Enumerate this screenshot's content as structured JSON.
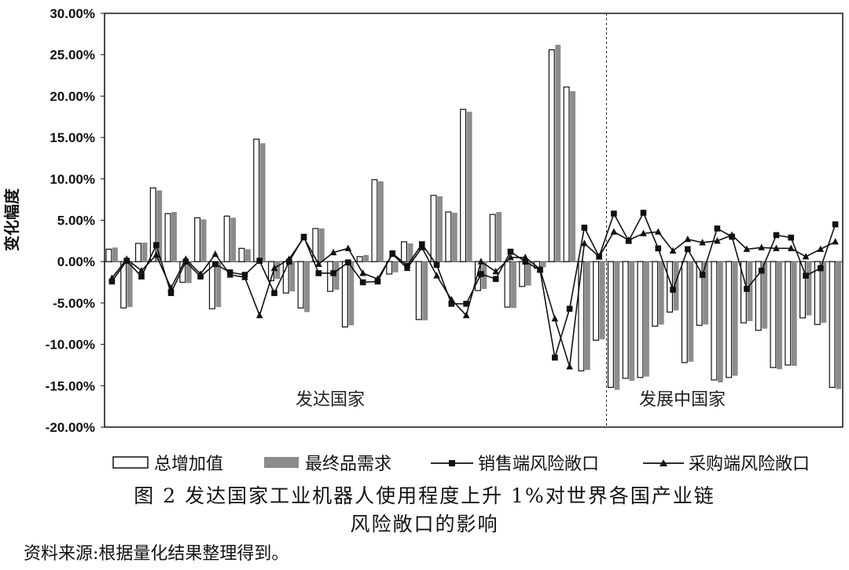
{
  "chart_data": {
    "type": "bar",
    "ylabel": "变化幅度",
    "ylim": [
      -20,
      30
    ],
    "yticks": [
      "30.00%",
      "25.00%",
      "20.00%",
      "15.00%",
      "10.00%",
      "5.00%",
      "0.00%",
      "-5.00%",
      "-10.00%",
      "-15.00%",
      "-20.00%"
    ],
    "ytick_values": [
      30,
      25,
      20,
      15,
      10,
      5,
      0,
      -5,
      -10,
      -15,
      -20
    ],
    "regions": [
      "发达国家",
      "发展中国家"
    ],
    "developed_count": 34,
    "bars": [
      {
        "name": "总增加值",
        "style": "hollow",
        "values": [
          1.5,
          -5.6,
          2.2,
          8.9,
          5.8,
          -2.5,
          5.3,
          -5.7,
          5.5,
          1.6,
          14.8,
          -2.3,
          -3.8,
          -5.6,
          4.0,
          -3.6,
          -7.9,
          0.6,
          9.9,
          -1.5,
          2.4,
          -7.0,
          8.0,
          6.0,
          18.4,
          -3.5,
          5.7,
          -5.5,
          -3.0,
          -0.8,
          25.6,
          21.1,
          -13.2,
          -9.5,
          -15.2,
          -14.1,
          -14.0,
          -7.8,
          -6.1,
          -12.2,
          -7.7,
          -14.3,
          -14.0,
          -7.4,
          -8.3,
          -12.8,
          -12.5,
          -6.8,
          -7.6,
          -15.2
        ],
        "color": "#ffffff"
      },
      {
        "name": "最终品需求",
        "style": "filled",
        "values": [
          1.7,
          -5.5,
          2.3,
          8.6,
          6.0,
          -2.6,
          5.1,
          -5.5,
          5.3,
          1.5,
          14.3,
          -2.1,
          -3.6,
          -6.1,
          4.0,
          -3.4,
          -7.7,
          0.8,
          9.7,
          -1.3,
          2.2,
          -7.1,
          7.9,
          5.9,
          18.1,
          -3.3,
          6.0,
          -5.6,
          -2.9,
          -0.7,
          26.2,
          20.6,
          -13.1,
          -9.4,
          -15.5,
          -14.4,
          -13.9,
          -7.6,
          -5.9,
          -12.1,
          -7.6,
          -14.6,
          -13.8,
          -7.2,
          -8.1,
          -13.0,
          -12.6,
          -6.5,
          -7.4,
          -15.4
        ],
        "color": "#8c8c8c"
      }
    ],
    "lines": [
      {
        "name": "销售端风险敞口",
        "marker": "square",
        "values": [
          -2.4,
          0.1,
          -1.8,
          2.0,
          -3.8,
          0.0,
          -1.8,
          -0.3,
          -1.3,
          -1.6,
          0.1,
          -3.8,
          0.0,
          3.0,
          -1.4,
          -1.4,
          -0.1,
          -2.5,
          -2.4,
          1.0,
          -0.5,
          2.1,
          -0.4,
          -5.1,
          -5.1,
          -1.5,
          -2.1,
          1.2,
          0.0,
          -1.0,
          -11.6,
          -5.7,
          4.1,
          0.6,
          5.8,
          2.5,
          5.9,
          1.6,
          -3.4,
          1.5,
          -1.6,
          4.0,
          3.0,
          -3.3,
          -1.1,
          3.2,
          2.9,
          -1.7,
          -0.8,
          4.5
        ],
        "color": "#111111"
      },
      {
        "name": "采购端风险敞口",
        "marker": "triangle",
        "values": [
          -2.0,
          0.3,
          -1.1,
          0.8,
          -3.2,
          0.3,
          -1.5,
          0.9,
          -1.6,
          -1.9,
          -6.5,
          -0.8,
          0.3,
          2.9,
          -0.3,
          1.1,
          1.6,
          -1.4,
          -2.1,
          0.9,
          -0.8,
          1.7,
          -1.7,
          -4.6,
          -6.5,
          0.0,
          -1.2,
          0.5,
          0.5,
          -0.9,
          -6.9,
          -12.7,
          2.2,
          0.6,
          3.6,
          2.6,
          3.4,
          3.6,
          1.3,
          2.7,
          2.3,
          2.5,
          3.2,
          1.5,
          1.7,
          1.6,
          1.6,
          0.6,
          1.5,
          2.4
        ],
        "color": "#111111"
      }
    ]
  },
  "captions": {
    "line1": "图 2  发达国家工业机器人使用程度上升 1%对世界各国产业链",
    "line2": "风险敞口的影响",
    "source": "资料来源:根据量化结果整理得到。"
  }
}
